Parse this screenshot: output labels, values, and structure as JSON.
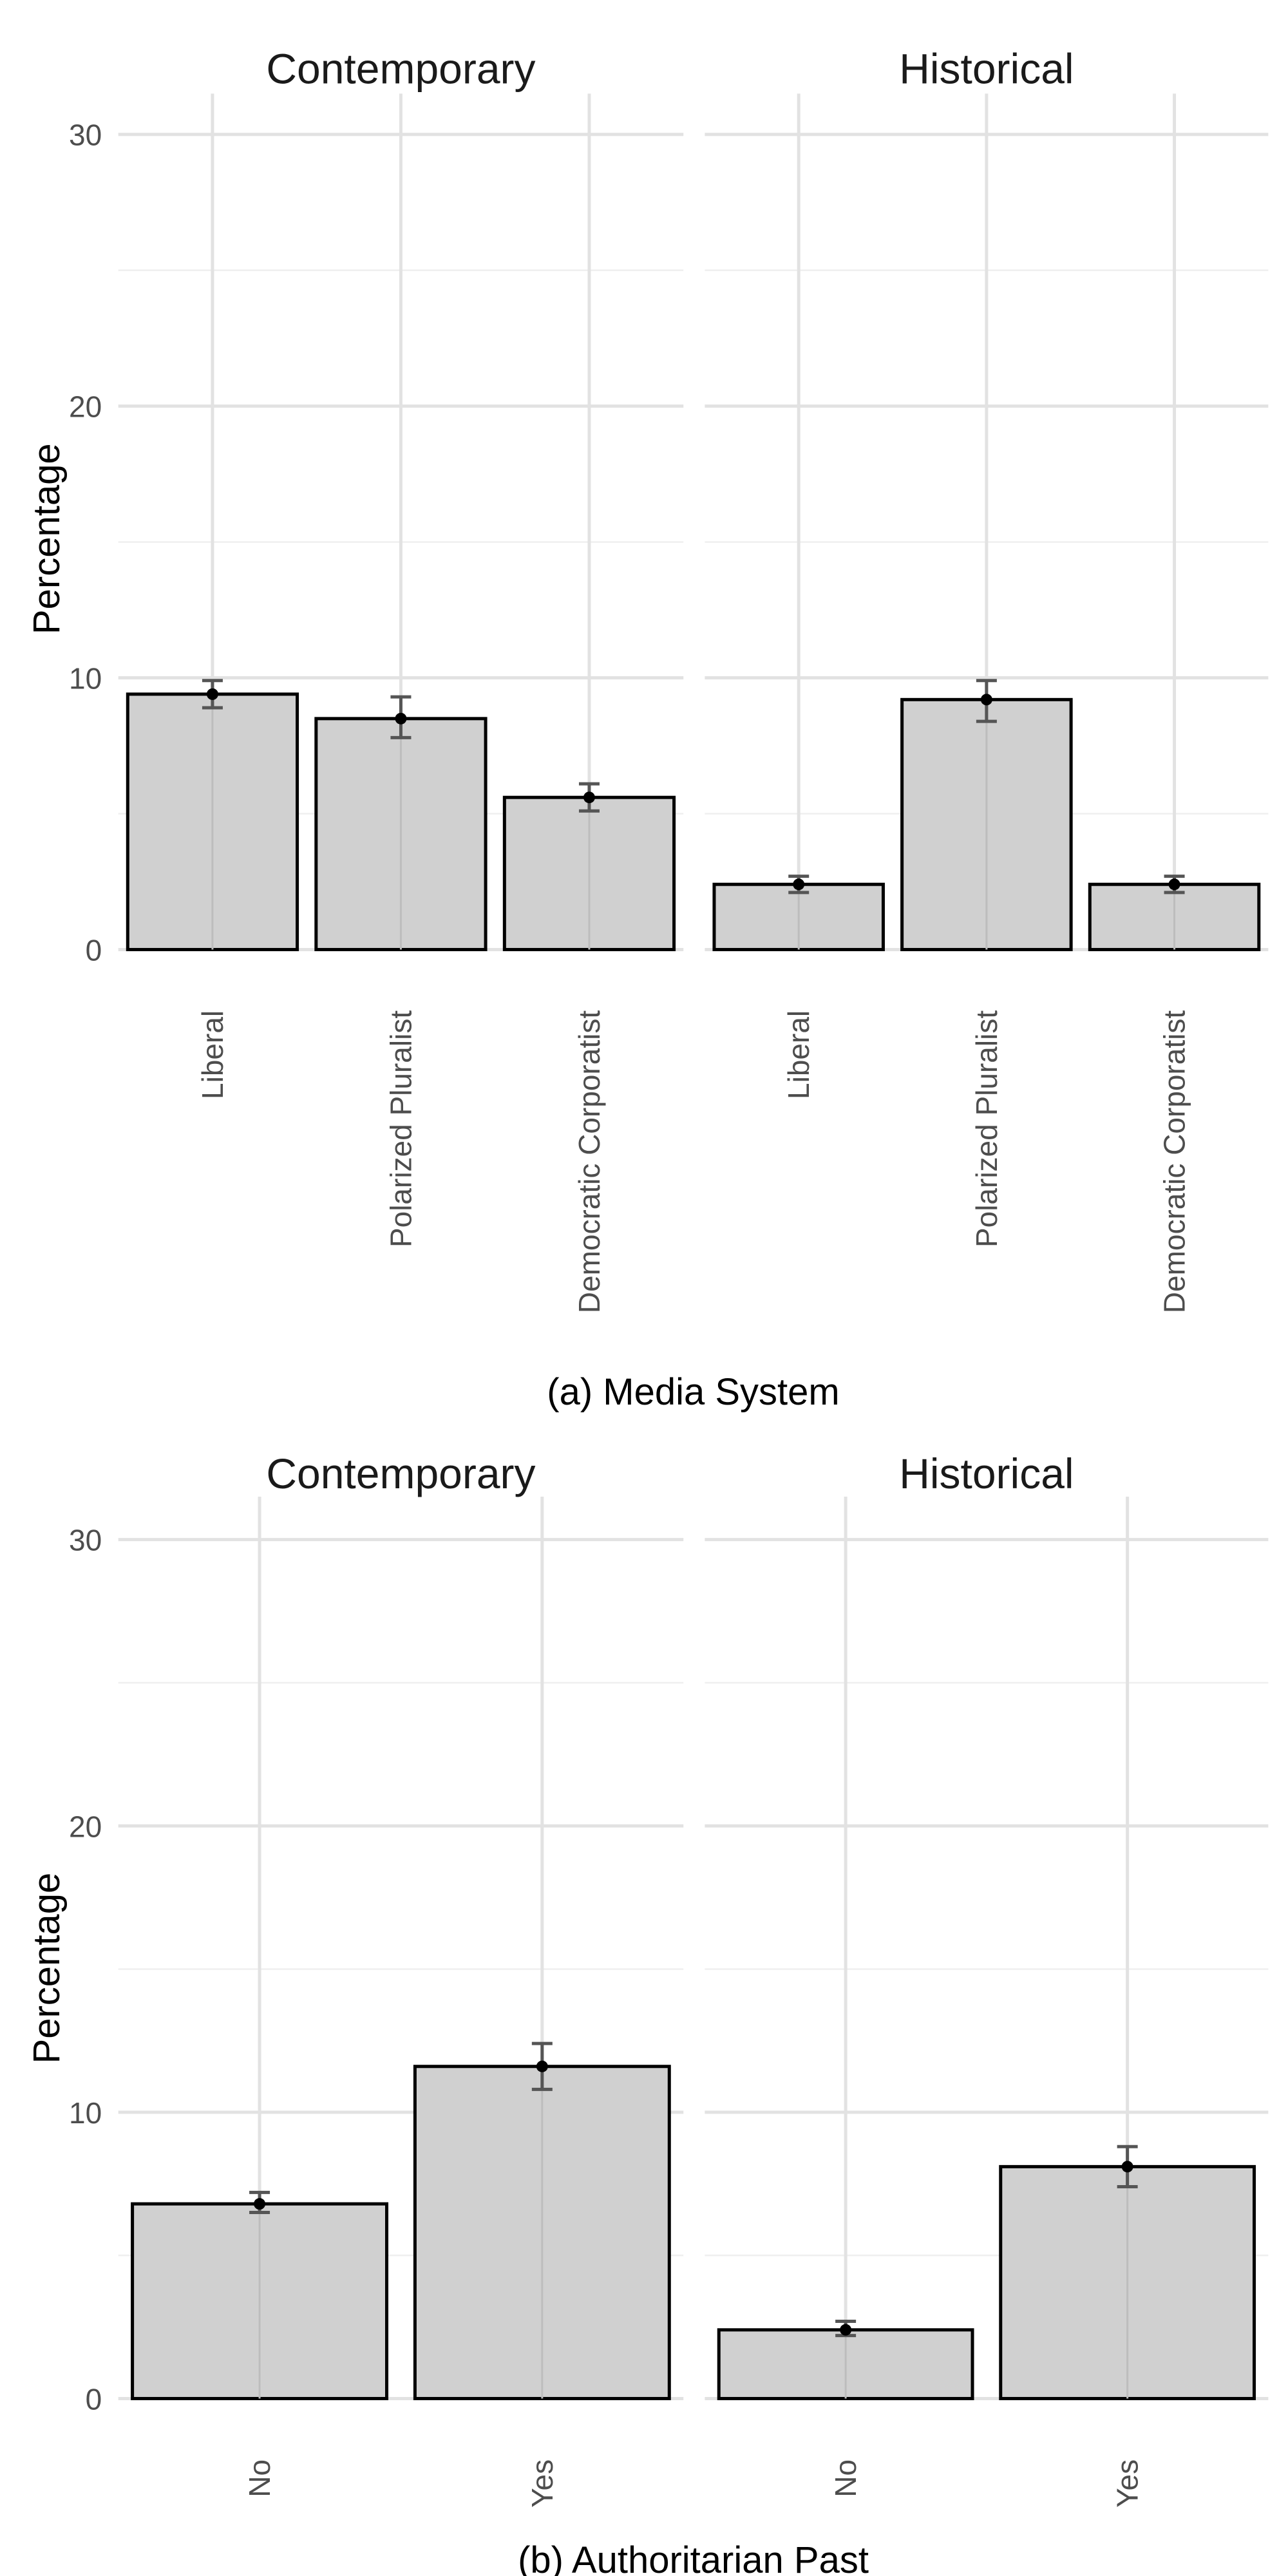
{
  "chart_data": [
    {
      "type": "bar",
      "caption": "(a) Media System",
      "ylabel": "Percentage",
      "ylim": [
        0,
        31.5
      ],
      "yticks": [
        0,
        10,
        20,
        30
      ],
      "grid": true,
      "error_bars": true,
      "bar_color": "#d0d0d0",
      "facets": [
        {
          "title": "Contemporary",
          "categories": [
            "Liberal",
            "Polarized Pluralist",
            "Democratic Corporatist"
          ],
          "values": [
            9.4,
            8.5,
            5.6
          ],
          "error_low": [
            8.9,
            7.8,
            5.1
          ],
          "error_high": [
            9.9,
            9.3,
            6.1
          ]
        },
        {
          "title": "Historical",
          "categories": [
            "Liberal",
            "Polarized Pluralist",
            "Democratic Corporatist"
          ],
          "values": [
            2.4,
            9.2,
            2.4
          ],
          "error_low": [
            2.1,
            8.4,
            2.1
          ],
          "error_high": [
            2.7,
            9.9,
            2.7
          ]
        }
      ]
    },
    {
      "type": "bar",
      "caption": "(b) Authoritarian Past",
      "ylabel": "Percentage",
      "ylim": [
        0,
        31.5
      ],
      "yticks": [
        0,
        10,
        20,
        30
      ],
      "grid": true,
      "error_bars": true,
      "bar_color": "#d0d0d0",
      "facets": [
        {
          "title": "Contemporary",
          "categories": [
            "No",
            "Yes"
          ],
          "values": [
            6.8,
            11.6
          ],
          "error_low": [
            6.5,
            10.8
          ],
          "error_high": [
            7.2,
            12.4
          ]
        },
        {
          "title": "Historical",
          "categories": [
            "No",
            "Yes"
          ],
          "values": [
            2.4,
            8.1
          ],
          "error_low": [
            2.2,
            7.4
          ],
          "error_high": [
            2.7,
            8.8
          ]
        }
      ]
    }
  ]
}
